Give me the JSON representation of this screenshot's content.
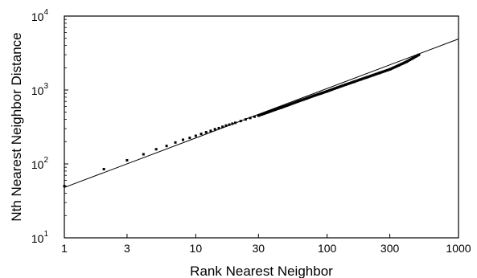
{
  "chart_data": {
    "type": "scatter",
    "xscale": "log",
    "yscale": "log",
    "xlim": [
      1,
      1000
    ],
    "ylim": [
      10,
      10000
    ],
    "xlabel": "Rank Nearest Neighbor",
    "ylabel": "Nth Nearest Neighbor Distance",
    "x_ticks": [
      {
        "value": 1,
        "label": "1"
      },
      {
        "value": 3,
        "label": "3"
      },
      {
        "value": 10,
        "label": "10"
      },
      {
        "value": 30,
        "label": "30"
      },
      {
        "value": 100,
        "label": "100"
      },
      {
        "value": 300,
        "label": "300"
      },
      {
        "value": 1000,
        "label": "1000"
      }
    ],
    "y_ticks": [
      {
        "value": 10,
        "base": "10",
        "exp": "1"
      },
      {
        "value": 100,
        "base": "10",
        "exp": "2"
      },
      {
        "value": 1000,
        "base": "10",
        "exp": "3"
      },
      {
        "value": 10000,
        "base": "10",
        "exp": "4"
      }
    ],
    "fit_line": {
      "x": [
        1,
        1000
      ],
      "y": [
        48,
        4900
      ]
    },
    "points": {
      "x": [
        1,
        2,
        3,
        4,
        5,
        6,
        7,
        8,
        9,
        10,
        11,
        12,
        13,
        14,
        15,
        16,
        17,
        18,
        19,
        20,
        22,
        24,
        26,
        28,
        30,
        35,
        40,
        45,
        50,
        60,
        70,
        80,
        90,
        100,
        120,
        140,
        160,
        180,
        200,
        250,
        300,
        350,
        400,
        450,
        500
      ],
      "y": [
        50,
        85,
        112,
        135,
        158,
        175,
        195,
        212,
        225,
        240,
        255,
        268,
        280,
        295,
        305,
        318,
        330,
        340,
        350,
        360,
        380,
        400,
        418,
        435,
        450,
        495,
        540,
        580,
        620,
        700,
        770,
        840,
        900,
        960,
        1080,
        1190,
        1290,
        1390,
        1480,
        1700,
        1900,
        2150,
        2400,
        2700,
        3000
      ]
    }
  }
}
